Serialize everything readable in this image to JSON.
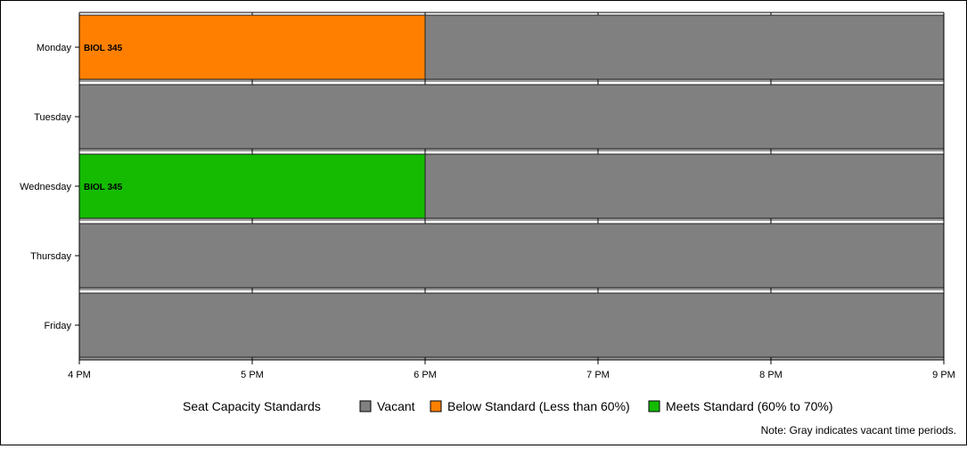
{
  "chart_data": {
    "type": "bar",
    "orientation": "horizontal-timeline",
    "categories": [
      "Monday",
      "Tuesday",
      "Wednesday",
      "Thursday",
      "Friday"
    ],
    "x_ticks": [
      "4 PM",
      "5 PM",
      "6 PM",
      "7 PM",
      "8 PM",
      "9 PM"
    ],
    "xlim": [
      16,
      21
    ],
    "segments": [
      {
        "day": "Monday",
        "start": 16,
        "end": 18,
        "status": "below",
        "label": "BIOL 345"
      },
      {
        "day": "Monday",
        "start": 18,
        "end": 21,
        "status": "vacant",
        "label": ""
      },
      {
        "day": "Tuesday",
        "start": 16,
        "end": 21,
        "status": "vacant",
        "label": ""
      },
      {
        "day": "Wednesday",
        "start": 16,
        "end": 18,
        "status": "meets",
        "label": "BIOL 345"
      },
      {
        "day": "Wednesday",
        "start": 18,
        "end": 21,
        "status": "vacant",
        "label": ""
      },
      {
        "day": "Thursday",
        "start": 16,
        "end": 21,
        "status": "vacant",
        "label": ""
      },
      {
        "day": "Friday",
        "start": 16,
        "end": 21,
        "status": "vacant",
        "label": ""
      }
    ],
    "legend": {
      "title": "Seat Capacity Standards",
      "placement": "bottom",
      "items": [
        {
          "key": "vacant",
          "label": "Vacant",
          "color": "#808080"
        },
        {
          "key": "below",
          "label": "Below Standard (Less than 60%)",
          "color": "#ff8000"
        },
        {
          "key": "meets",
          "label": "Meets Standard (60% to 70%)",
          "color": "#14bb00"
        }
      ]
    },
    "note": "Note: Gray indicates vacant time periods.",
    "grid": true
  }
}
